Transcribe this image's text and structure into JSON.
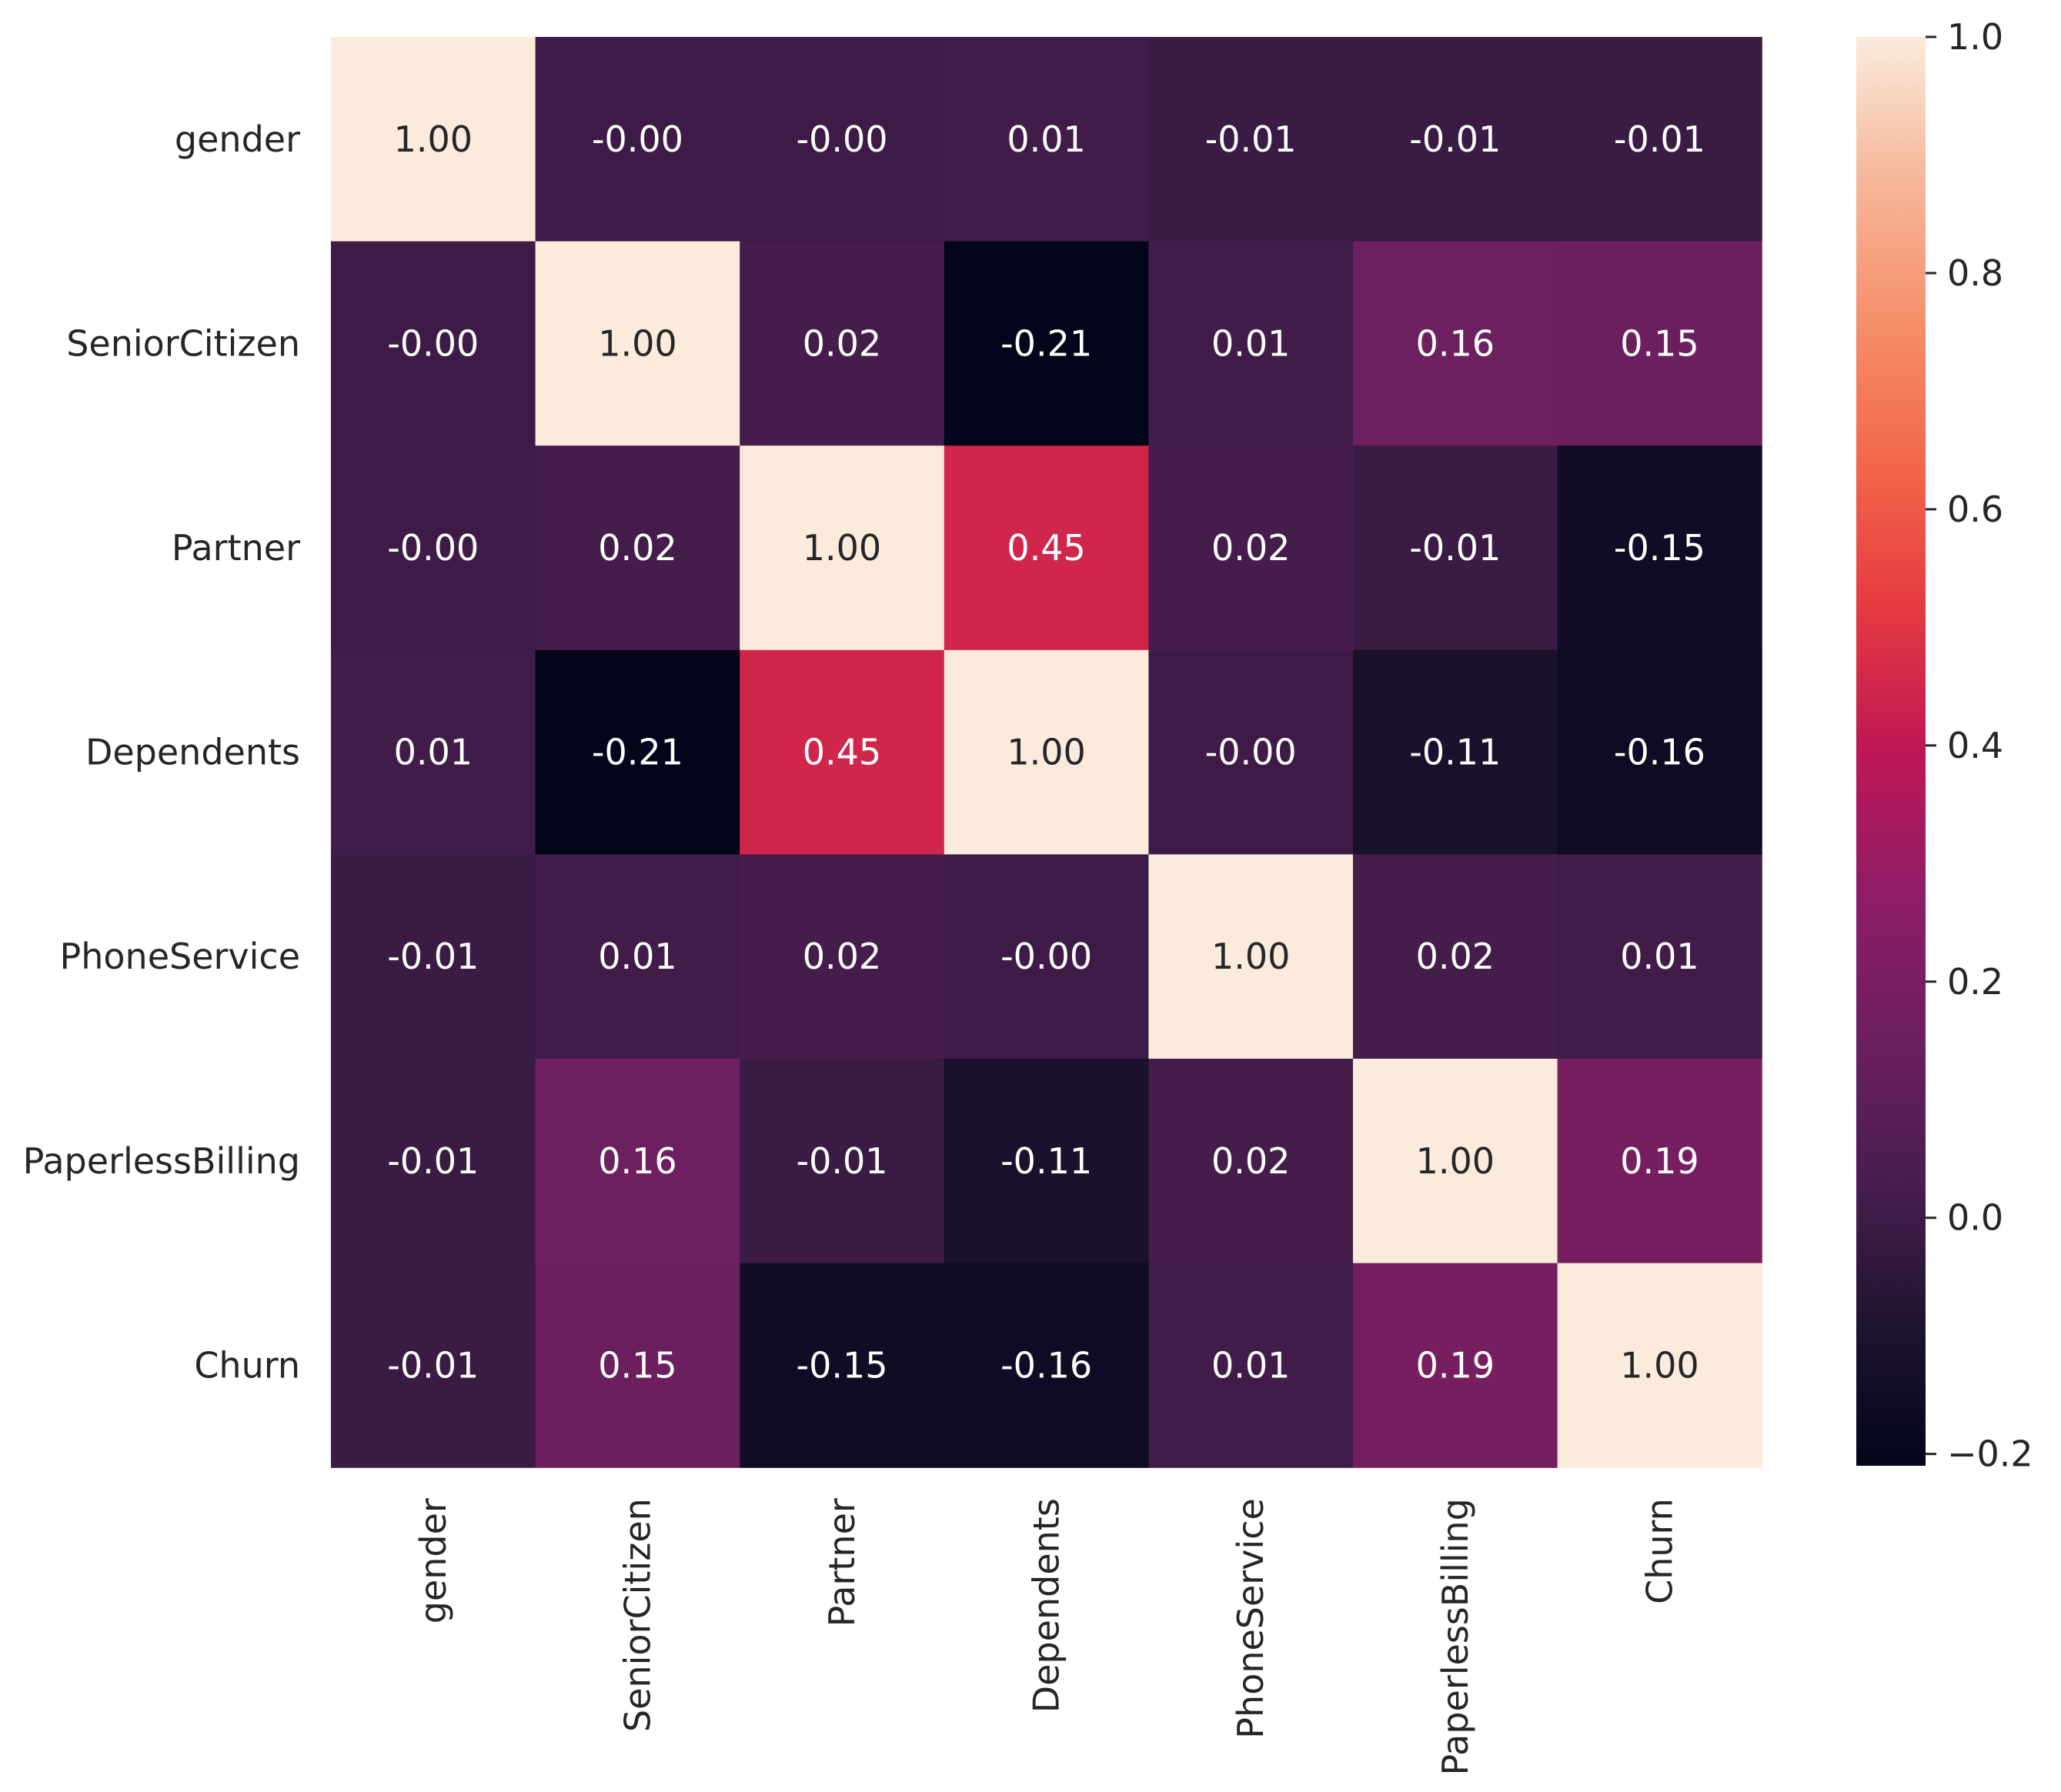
{
  "chart_data": {
    "type": "heatmap",
    "title": "",
    "xlabel": "",
    "ylabel": "",
    "rows": [
      "gender",
      "SeniorCitizen",
      "Partner",
      "Dependents",
      "PhoneService",
      "PaperlessBilling",
      "Churn"
    ],
    "columns": [
      "gender",
      "SeniorCitizen",
      "Partner",
      "Dependents",
      "PhoneService",
      "PaperlessBilling",
      "Churn"
    ],
    "values": [
      [
        1.0,
        -0.0,
        -0.0,
        0.01,
        -0.01,
        -0.01,
        -0.01
      ],
      [
        -0.0,
        1.0,
        0.02,
        -0.21,
        0.01,
        0.16,
        0.15
      ],
      [
        -0.0,
        0.02,
        1.0,
        0.45,
        0.02,
        -0.01,
        -0.15
      ],
      [
        0.01,
        -0.21,
        0.45,
        1.0,
        -0.0,
        -0.11,
        -0.16
      ],
      [
        -0.01,
        0.01,
        0.02,
        -0.0,
        1.0,
        0.02,
        0.01
      ],
      [
        -0.01,
        0.16,
        -0.01,
        -0.11,
        0.02,
        1.0,
        0.19
      ],
      [
        -0.01,
        0.15,
        -0.15,
        -0.16,
        0.01,
        0.19,
        1.0
      ]
    ],
    "cell_labels": [
      [
        "1.00",
        "-0.00",
        "-0.00",
        "0.01",
        "-0.01",
        "-0.01",
        "-0.01"
      ],
      [
        "-0.00",
        "1.00",
        "0.02",
        "-0.21",
        "0.01",
        "0.16",
        "0.15"
      ],
      [
        "-0.00",
        "0.02",
        "1.00",
        "0.45",
        "0.02",
        "-0.01",
        "-0.15"
      ],
      [
        "0.01",
        "-0.21",
        "0.45",
        "1.00",
        "-0.00",
        "-0.11",
        "-0.16"
      ],
      [
        "-0.01",
        "0.01",
        "0.02",
        "-0.00",
        "1.00",
        "0.02",
        "0.01"
      ],
      [
        "-0.01",
        "0.16",
        "-0.01",
        "-0.11",
        "0.02",
        "1.00",
        "0.19"
      ],
      [
        "-0.01",
        "0.15",
        "-0.15",
        "-0.16",
        "0.01",
        "0.19",
        "1.00"
      ]
    ],
    "colorbar": {
      "vmin": -0.21,
      "vmax": 1.0,
      "ticks": [
        -0.2,
        0.0,
        0.2,
        0.4,
        0.6,
        0.8,
        1.0
      ],
      "tick_labels": [
        "−0.2",
        "0.0",
        "0.2",
        "0.4",
        "0.6",
        "0.8",
        "1.0"
      ],
      "colormap": "rocket",
      "colormap_stops": [
        [
          0.0,
          "#03051a"
        ],
        [
          0.1,
          "#1f1431"
        ],
        [
          0.2,
          "#491e4e"
        ],
        [
          0.3,
          "#6c1f5f"
        ],
        [
          0.4,
          "#8f1d66"
        ],
        [
          0.5,
          "#be1656"
        ],
        [
          0.6,
          "#e63a40"
        ],
        [
          0.7,
          "#f2664b"
        ],
        [
          0.8,
          "#f58f6b"
        ],
        [
          0.9,
          "#f6b799"
        ],
        [
          1.0,
          "#faebdd"
        ]
      ]
    },
    "annotation_colors": {
      "on_dark": "#ffffff",
      "on_light": "#262626"
    },
    "grid": false,
    "legend": "colorbar-right"
  }
}
